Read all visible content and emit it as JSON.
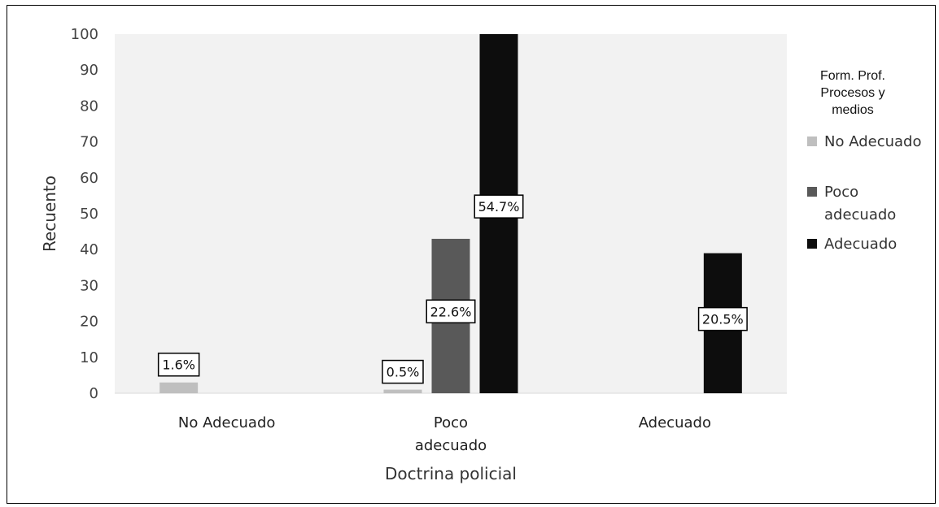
{
  "chart_data": {
    "type": "bar",
    "title": "",
    "xlabel": "Doctrina policial",
    "ylabel": "Recuento",
    "ylim": [
      0,
      100
    ],
    "yticks": [
      "0",
      "10",
      "20",
      "30",
      "40",
      "50",
      "60",
      "70",
      "80",
      "90",
      "100"
    ],
    "categories": [
      [
        "No Adecuado"
      ],
      [
        "Poco",
        "adecuado"
      ],
      [
        "Adecuado"
      ]
    ],
    "series": [
      {
        "name": "No Adecuado",
        "color": "#bfbfbf",
        "values": [
          3,
          1,
          0
        ],
        "labels": [
          "1.6%",
          "0.5%",
          ""
        ]
      },
      {
        "name": "Poco adecuado",
        "color": "#595959",
        "values": [
          0,
          43,
          0
        ],
        "labels": [
          "",
          "22.6%",
          ""
        ]
      },
      {
        "name": "Adecuado",
        "color": "#0d0d0d",
        "values": [
          0,
          104,
          39
        ],
        "labels": [
          "",
          "54.7%",
          "20.5%"
        ]
      }
    ],
    "legend": {
      "title": [
        "Form. Prof.",
        "Procesos y",
        "medios"
      ],
      "entries": [
        [
          "No Adecuado"
        ],
        [
          "Poco",
          "adecuado"
        ],
        [
          "Adecuado"
        ]
      ],
      "placement": "right"
    },
    "grid": false,
    "plot_background": "#f2f2f2"
  }
}
